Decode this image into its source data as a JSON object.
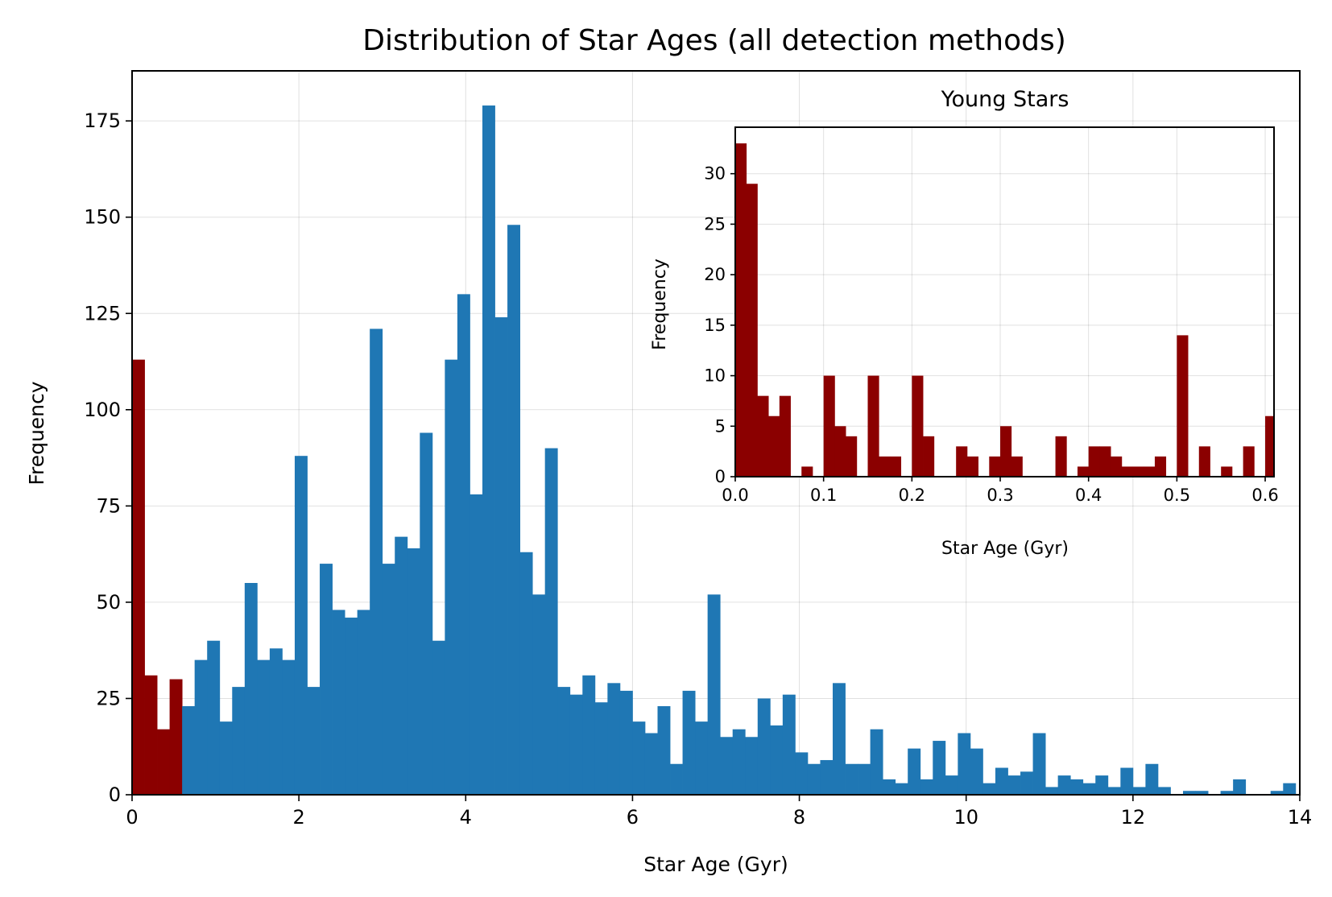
{
  "chart_data": [
    {
      "type": "bar",
      "title": "Distribution of Star Ages (all detection methods)",
      "xlabel": "Star Age (Gyr)",
      "ylabel": "Frequency",
      "xlim": [
        0,
        14
      ],
      "ylim": [
        0,
        188
      ],
      "xticks": [
        0,
        2,
        4,
        6,
        8,
        10,
        12,
        14
      ],
      "yticks": [
        0,
        25,
        50,
        75,
        100,
        125,
        150,
        175
      ],
      "grid": true,
      "bin_width": 0.15,
      "highlight_below": 0.6,
      "colors": {
        "normal": "#1f77b4",
        "highlight": "#8b0000"
      },
      "bin_starts": [
        0,
        0.15,
        0.3,
        0.45,
        0.6,
        0.75,
        0.9,
        1.05,
        1.2,
        1.35,
        1.5,
        1.65,
        1.8,
        1.95,
        2.1,
        2.25,
        2.4,
        2.55,
        2.7,
        2.85,
        3,
        3.15,
        3.3,
        3.45,
        3.6,
        3.75,
        3.9,
        4.05,
        4.2,
        4.35,
        4.5,
        4.65,
        4.8,
        4.95,
        5.1,
        5.25,
        5.4,
        5.55,
        5.7,
        5.85,
        6,
        6.15,
        6.3,
        6.45,
        6.6,
        6.75,
        6.9,
        7.05,
        7.2,
        7.35,
        7.5,
        7.65,
        7.8,
        7.95,
        8.1,
        8.25,
        8.4,
        8.55,
        8.7,
        8.85,
        9,
        9.15,
        9.3,
        9.45,
        9.6,
        9.75,
        9.9,
        10.05,
        10.2,
        10.35,
        10.5,
        10.65,
        10.8,
        10.95,
        11.1,
        11.25,
        11.4,
        11.55,
        11.7,
        11.85,
        12,
        12.15,
        12.3,
        12.45,
        12.6,
        12.75,
        12.9,
        13.05,
        13.2,
        13.35,
        13.5,
        13.65,
        13.8
      ],
      "values": [
        113,
        31,
        17,
        30,
        23,
        35,
        40,
        19,
        28,
        55,
        35,
        38,
        35,
        88,
        28,
        60,
        48,
        46,
        48,
        121,
        60,
        67,
        64,
        94,
        40,
        113,
        130,
        78,
        179,
        124,
        148,
        63,
        52,
        90,
        28,
        26,
        31,
        24,
        29,
        27,
        19,
        16,
        23,
        8,
        27,
        19,
        52,
        15,
        17,
        15,
        25,
        18,
        26,
        11,
        8,
        9,
        29,
        8,
        8,
        17,
        4,
        3,
        12,
        4,
        14,
        5,
        16,
        12,
        3,
        7,
        5,
        6,
        16,
        2,
        5,
        4,
        3,
        5,
        2,
        7,
        2,
        8,
        2,
        0,
        1,
        1,
        0,
        1,
        4,
        0,
        0,
        1,
        3
      ]
    },
    {
      "type": "bar",
      "title": "Young Stars",
      "xlabel": "Star Age (Gyr)",
      "ylabel": "Frequency",
      "xlim": [
        0,
        0.61
      ],
      "ylim": [
        0,
        34.6
      ],
      "xticks": [
        "0.0",
        "0.1",
        "0.2",
        "0.3",
        "0.4",
        "0.5",
        "0.6"
      ],
      "yticks": [
        0,
        5,
        10,
        15,
        20,
        25,
        30
      ],
      "grid": true,
      "legend": "none",
      "bin_width": 0.0125,
      "color": "#8b0000",
      "bin_starts": [
        0,
        0.0125,
        0.025,
        0.0375,
        0.05,
        0.0625,
        0.075,
        0.0875,
        0.1,
        0.1125,
        0.125,
        0.1375,
        0.15,
        0.1625,
        0.175,
        0.1875,
        0.2,
        0.2125,
        0.225,
        0.2375,
        0.25,
        0.2625,
        0.275,
        0.2875,
        0.3,
        0.3125,
        0.325,
        0.3375,
        0.35,
        0.3625,
        0.375,
        0.3875,
        0.4,
        0.4125,
        0.425,
        0.4375,
        0.45,
        0.4625,
        0.475,
        0.4875,
        0.5,
        0.5125,
        0.525,
        0.5375,
        0.55,
        0.5625,
        0.575,
        0.5875,
        0.6
      ],
      "values": [
        33,
        29,
        8,
        6,
        8,
        0,
        1,
        0,
        10,
        5,
        4,
        0,
        10,
        2,
        2,
        0,
        10,
        4,
        0,
        0,
        3,
        2,
        0,
        2,
        5,
        2,
        0,
        0,
        0,
        4,
        0,
        1,
        3,
        3,
        2,
        1,
        1,
        1,
        2,
        0,
        14,
        0,
        3,
        0,
        1,
        0,
        3,
        0,
        6
      ]
    }
  ]
}
